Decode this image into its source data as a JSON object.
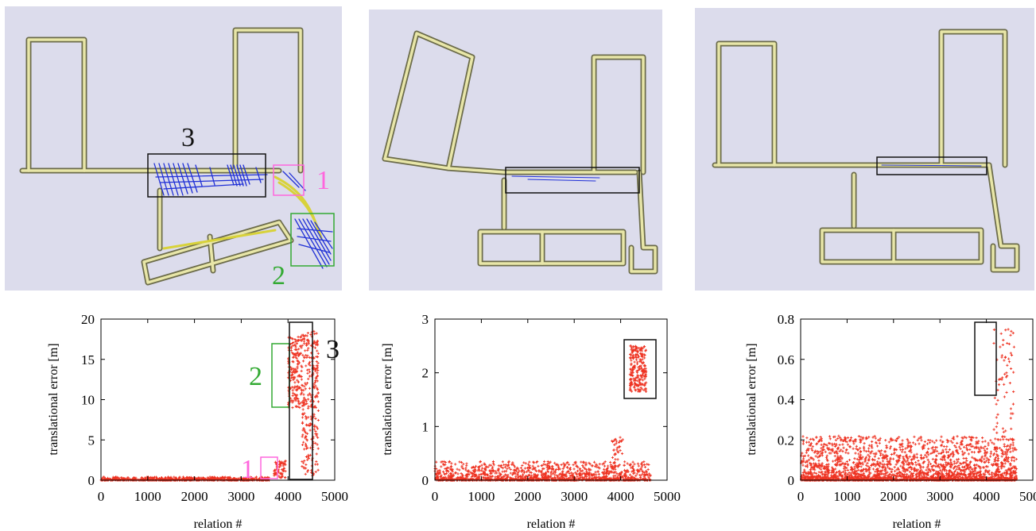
{
  "colors": {
    "map_bg": "#dcdcec",
    "corridor": "#e8e6a8",
    "corridor_edge": "#6b6b4a",
    "constraint": "#1f2fd6",
    "points": "#ee3322",
    "box1": "#ff66dd",
    "box2": "#33aa33",
    "box3": "#111111"
  },
  "map_labels": {
    "box1": "1",
    "box2": "2",
    "box3": "3"
  },
  "plot_labels": {
    "box1": "1",
    "box2": "2",
    "box3": "3"
  },
  "chart_data": [
    {
      "type": "scatter",
      "xlabel": "relation #",
      "ylabel": "translational error [m]",
      "xlim": [
        0,
        5000
      ],
      "ylim": [
        0,
        20
      ],
      "xticks": [
        "0",
        "1000",
        "2000",
        "3000",
        "4000",
        "5000"
      ],
      "yticks": [
        "0",
        "5",
        "10",
        "15",
        "20"
      ],
      "grid": false,
      "series": [
        {
          "clusters": [
            {
              "x_range": [
                0,
                3600
              ],
              "y_range": [
                0,
                0.4
              ]
            },
            {
              "x_range": [
                3700,
                3950
              ],
              "y_range": [
                0.3,
                2.4
              ]
            },
            {
              "x_range": [
                4000,
                4300
              ],
              "y_range": [
                9.0,
                17.8
              ]
            },
            {
              "x_range": [
                4300,
                4650
              ],
              "y_range": [
                0.5,
                18.5
              ]
            }
          ]
        }
      ]
    },
    {
      "type": "scatter",
      "xlabel": "relation #",
      "ylabel": "translational error [m]",
      "xlim": [
        0,
        5000
      ],
      "ylim": [
        0,
        3
      ],
      "xticks": [
        "0",
        "1000",
        "2000",
        "3000",
        "4000",
        "5000"
      ],
      "yticks": [
        "0",
        "1",
        "2",
        "3"
      ],
      "grid": false,
      "series": [
        {
          "clusters": [
            {
              "x_range": [
                0,
                4650
              ],
              "y_range": [
                0,
                0.35
              ]
            },
            {
              "x_range": [
                3800,
                4050
              ],
              "y_range": [
                0.2,
                0.8
              ]
            },
            {
              "x_range": [
                4200,
                4550
              ],
              "y_range": [
                1.65,
                2.5
              ]
            }
          ]
        }
      ]
    },
    {
      "type": "scatter",
      "xlabel": "relation #",
      "ylabel": "translational error [m]",
      "xlim": [
        0,
        5000
      ],
      "ylim": [
        0,
        0.8
      ],
      "xticks": [
        "0",
        "1000",
        "2000",
        "3000",
        "4000",
        "5000"
      ],
      "yticks": [
        "0",
        "0.2",
        "0.4",
        "0.6",
        "0.8"
      ],
      "grid": false,
      "series": [
        {
          "clusters": [
            {
              "x_range": [
                0,
                4650
              ],
              "y_range": [
                0,
                0.22
              ]
            },
            {
              "x_range": [
                4150,
                4600
              ],
              "y_range": [
                0.05,
                0.75
              ]
            }
          ]
        }
      ]
    }
  ]
}
